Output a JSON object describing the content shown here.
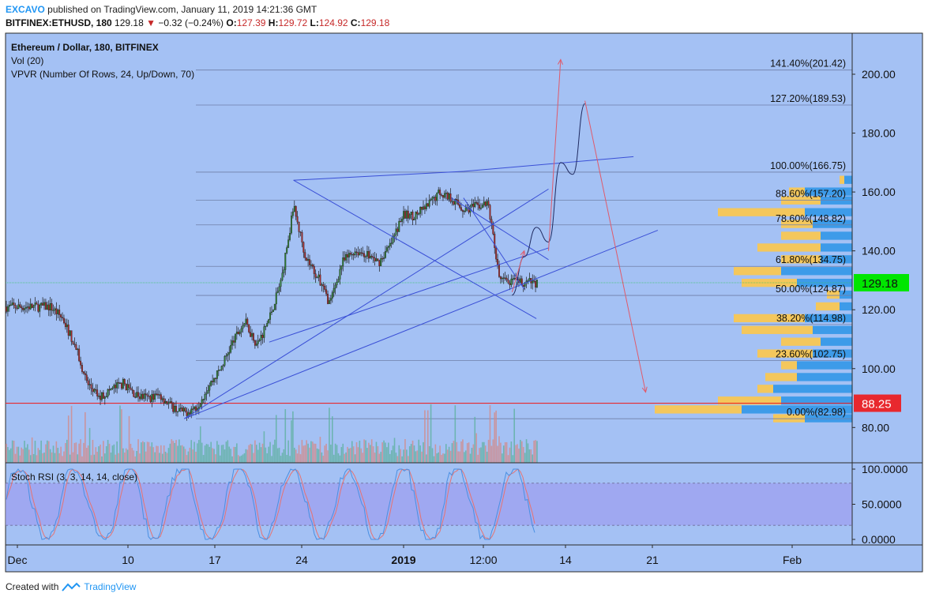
{
  "header": {
    "author": "EXCAVO",
    "published_text": "published on TradingView.com, January 11, 2019 14:21:36 GMT",
    "symbol": "BITFINEX:ETHUSD, 180",
    "last": "129.18",
    "change_arrow": "▼",
    "change": "−0.32 (−0.24%)",
    "o_label": "O:",
    "o": "127.39",
    "h_label": "H:",
    "h": "129.72",
    "l_label": "L:",
    "l": "124.92",
    "c_label": "C:",
    "c": "129.18"
  },
  "legend": {
    "title": "Ethereum / Dollar, 180, BITFINEX",
    "vol": "Vol (20)",
    "vpvr": "VPVR (Number Of Rows, 24, Up/Down, 70)"
  },
  "price_axis": {
    "ticks": [
      "200.00",
      "180.00",
      "160.00",
      "140.00",
      "120.00",
      "100.00",
      "80.00"
    ]
  },
  "price_tags": {
    "current": "129.18",
    "support": "88.25"
  },
  "fib_levels": [
    {
      "label": "141.40%(201.42)",
      "price": 201.42
    },
    {
      "label": "127.20%(189.53)",
      "price": 189.53
    },
    {
      "label": "100.00%(166.75)",
      "price": 166.75
    },
    {
      "label": "88.60%(157.20)",
      "price": 157.2
    },
    {
      "label": "78.60%(148.82)",
      "price": 148.82
    },
    {
      "label": "61.80%(134.75)",
      "price": 134.75
    },
    {
      "label": "50.00%(124.87)",
      "price": 124.87
    },
    {
      "label": "38.20%(114.98)",
      "price": 114.98
    },
    {
      "label": "23.60%(102.75)",
      "price": 102.75
    },
    {
      "label": "0.00%(82.98)",
      "price": 82.98
    }
  ],
  "time_axis": {
    "ticks": [
      "Dec",
      "10",
      "17",
      "24",
      "2019",
      "12:00",
      "14",
      "21",
      "Feb"
    ]
  },
  "stoch": {
    "label": "Stoch RSI (3, 3, 14, 14, close)",
    "ticks": [
      "100.0000",
      "50.0000",
      "0.0000"
    ],
    "upper_band": 80,
    "lower_band": 20
  },
  "footer": {
    "created": "Created with",
    "brand": "TradingView"
  },
  "colors": {
    "background": "#a4c1f4",
    "up_candle": "#2e7d32",
    "down_candle": "#a52a2a",
    "trendline": "#3a4fd6",
    "projection": "#e05a6a",
    "fib_line": "#6f7fa8",
    "current_price": "#00e600",
    "support": "#e8282e",
    "vpvr_up": "#3d9be9",
    "vpvr_down": "#f4c75c",
    "stoch_fill": "#9c9cf0",
    "stoch_k": "#4a90e2",
    "stoch_d": "#e57373"
  },
  "chart_data": {
    "type": "candlestick",
    "title": "Ethereum / Dollar, 180, BITFINEX",
    "ylim": [
      66,
      212
    ],
    "x_ticks": [
      "Dec",
      "10",
      "17",
      "24",
      "2019",
      "12:00",
      "14",
      "21",
      "Feb"
    ],
    "anchors": [
      {
        "date": "2018-12-04",
        "price": 121
      },
      {
        "date": "2018-12-05",
        "price": 117
      },
      {
        "date": "2018-12-06",
        "price": 108
      },
      {
        "date": "2018-12-07",
        "price": 95
      },
      {
        "date": "2018-12-08",
        "price": 90
      },
      {
        "date": "2018-12-09",
        "price": 93
      },
      {
        "date": "2018-12-10",
        "price": 95
      },
      {
        "date": "2018-12-11",
        "price": 91
      },
      {
        "date": "2018-12-12",
        "price": 90
      },
      {
        "date": "2018-12-13",
        "price": 91
      },
      {
        "date": "2018-12-14",
        "price": 87
      },
      {
        "date": "2018-12-15",
        "price": 85
      },
      {
        "date": "2018-12-16",
        "price": 87
      },
      {
        "date": "2018-12-17",
        "price": 94
      },
      {
        "date": "2018-12-18",
        "price": 100
      },
      {
        "date": "2018-12-19",
        "price": 109
      },
      {
        "date": "2018-12-20",
        "price": 116
      },
      {
        "date": "2018-12-21",
        "price": 108
      },
      {
        "date": "2018-12-22",
        "price": 117
      },
      {
        "date": "2018-12-23",
        "price": 130
      },
      {
        "date": "2018-12-24",
        "price": 155
      },
      {
        "date": "2018-12-25",
        "price": 138
      },
      {
        "date": "2018-12-26",
        "price": 131
      },
      {
        "date": "2018-12-27",
        "price": 122
      },
      {
        "date": "2018-12-28",
        "price": 136
      },
      {
        "date": "2018-12-29",
        "price": 140
      },
      {
        "date": "2018-12-30",
        "price": 139
      },
      {
        "date": "2018-12-31",
        "price": 136
      },
      {
        "date": "2019-01-01",
        "price": 142
      },
      {
        "date": "2019-01-02",
        "price": 152
      },
      {
        "date": "2019-01-03",
        "price": 152
      },
      {
        "date": "2019-01-04",
        "price": 155
      },
      {
        "date": "2019-01-05",
        "price": 160
      },
      {
        "date": "2019-01-06",
        "price": 158
      },
      {
        "date": "2019-01-07",
        "price": 154
      },
      {
        "date": "2019-01-08",
        "price": 155
      },
      {
        "date": "2019-01-09",
        "price": 156
      },
      {
        "date": "2019-01-10",
        "price": 130
      },
      {
        "date": "2019-01-11",
        "price": 129.18
      }
    ],
    "vpvr_rows": [
      {
        "price": 164,
        "up": 0.05,
        "down": 0.03
      },
      {
        "price": 160,
        "up": 0.3,
        "down": 0.1
      },
      {
        "price": 157,
        "up": 0.2,
        "down": 0.25
      },
      {
        "price": 153,
        "up": 0.3,
        "down": 0.55
      },
      {
        "price": 149,
        "up": 0.25,
        "down": 0.2
      },
      {
        "price": 145,
        "up": 0.2,
        "down": 0.25
      },
      {
        "price": 141,
        "up": 0.2,
        "down": 0.4
      },
      {
        "price": 137,
        "up": 0.2,
        "down": 0.25
      },
      {
        "price": 133,
        "up": 0.45,
        "down": 0.3
      },
      {
        "price": 129,
        "up": 0.35,
        "down": 0.35
      },
      {
        "price": 125,
        "up": 0.08,
        "down": 0.08
      },
      {
        "price": 121,
        "up": 0.08,
        "down": 0.15
      },
      {
        "price": 117,
        "up": 0.3,
        "down": 0.45
      },
      {
        "price": 113,
        "up": 0.25,
        "down": 0.45
      },
      {
        "price": 109,
        "up": 0.2,
        "down": 0.25
      },
      {
        "price": 105,
        "up": 0.25,
        "down": 0.35
      },
      {
        "price": 101,
        "up": 0.35,
        "down": 0.1
      },
      {
        "price": 97,
        "up": 0.35,
        "down": 0.2
      },
      {
        "price": 93,
        "up": 0.5,
        "down": 0.1
      },
      {
        "price": 89,
        "up": 0.45,
        "down": 0.4
      },
      {
        "price": 86,
        "up": 0.7,
        "down": 0.55
      },
      {
        "price": 83,
        "up": 0.3,
        "down": 0.2
      }
    ],
    "trendlines": [
      {
        "from": [
          "2018-12-15",
          83
        ],
        "to": [
          "2019-01-14",
          161
        ]
      },
      {
        "from": [
          "2018-12-15",
          83
        ],
        "to": [
          "2019-01-23",
          147
        ]
      },
      {
        "from": [
          "2018-12-22",
          109
        ],
        "to": [
          "2019-01-14",
          141
        ]
      },
      {
        "from": [
          "2018-12-24",
          164
        ],
        "to": [
          "2019-01-07",
          167
        ]
      },
      {
        "from": [
          "2019-01-07",
          167
        ],
        "to": [
          "2019-01-21",
          172
        ]
      },
      {
        "from": [
          "2018-12-24",
          164
        ],
        "to": [
          "2019-01-13",
          117
        ]
      },
      {
        "from": [
          "2019-01-06",
          158
        ],
        "to": [
          "2019-01-14",
          137
        ]
      },
      {
        "from": [
          "2019-01-07",
          158
        ],
        "to": [
          "2019-01-12",
          127
        ]
      }
    ],
    "projection_path": [
      [
        "2019-01-11",
        125
      ],
      [
        "2019-01-12",
        138
      ],
      [
        "2019-01-13",
        148
      ],
      [
        "2019-01-14",
        143
      ],
      [
        "2019-01-15",
        170
      ],
      [
        "2019-01-16",
        166
      ],
      [
        "2019-01-17",
        190
      ]
    ],
    "projection_arrows": [
      {
        "from": [
          "2019-01-14",
          140
        ],
        "to": [
          "2019-01-15",
          205
        ]
      },
      {
        "from": [
          "2019-01-11",
          126
        ],
        "to": [
          "2019-01-12",
          140
        ]
      },
      {
        "from": [
          "2019-01-17",
          191
        ],
        "to": [
          "2019-01-22",
          92
        ]
      }
    ]
  }
}
